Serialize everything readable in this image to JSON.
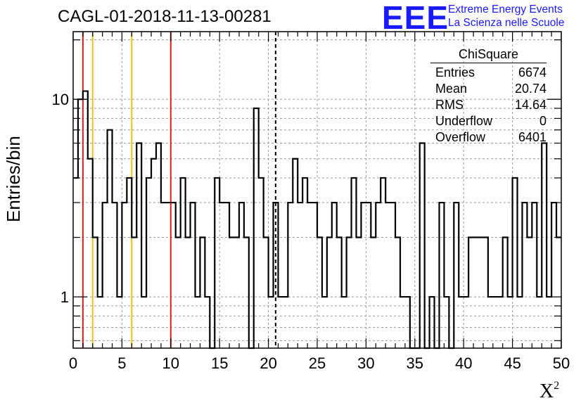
{
  "title": "CAGL-01-2018-11-13-00281",
  "logo": {
    "mark": "EEE",
    "line1": "Extreme Energy Events",
    "line2": "La Scienza nelle Scuole",
    "color": "#1a1aff"
  },
  "stats": {
    "name": "ChiSquare",
    "rows": [
      {
        "label": "Entries",
        "value": "6674"
      },
      {
        "label": "Mean",
        "value": "20.74"
      },
      {
        "label": "RMS",
        "value": "14.64"
      },
      {
        "label": "Underflow",
        "value": "0"
      },
      {
        "label": "Overflow",
        "value": "6401"
      }
    ]
  },
  "chart_data": {
    "type": "histogram",
    "title": "CAGL-01-2018-11-13-00281",
    "xlabel": "X²",
    "ylabel": "Entries/bin",
    "xlim": [
      0,
      50
    ],
    "ylim": [
      0.55,
      22
    ],
    "yscale": "log",
    "grid": true,
    "bin_width": 0.5,
    "xticks": [
      0,
      5,
      10,
      15,
      20,
      25,
      30,
      35,
      40,
      45,
      50
    ],
    "yticks": [
      1,
      10
    ],
    "values": [
      4,
      10,
      11,
      5,
      2,
      1,
      3,
      7,
      3,
      1,
      3,
      4,
      2,
      6,
      1,
      4,
      5,
      6,
      3,
      3,
      3,
      2,
      4,
      2,
      3,
      1,
      2,
      1,
      0,
      4,
      3,
      3,
      2,
      2,
      3,
      2,
      0,
      9,
      4,
      2,
      1,
      3,
      1,
      1,
      3,
      5,
      3,
      4,
      3,
      3,
      2,
      1,
      2,
      3,
      2,
      1,
      2,
      4,
      2,
      3,
      3,
      2,
      3,
      4,
      3,
      3,
      2,
      1,
      1,
      0,
      0,
      6,
      0,
      1,
      0,
      3,
      1,
      0,
      3,
      1,
      1,
      2,
      2,
      2,
      2,
      1,
      1,
      1,
      2,
      1,
      4,
      1,
      3,
      2,
      3,
      1,
      6,
      1,
      3,
      2
    ],
    "vertical_lines": [
      {
        "x": 1,
        "color": "#e0201a",
        "style": "solid"
      },
      {
        "x": 2,
        "color": "#f2c21a",
        "style": "solid"
      },
      {
        "x": 6,
        "color": "#f2c21a",
        "style": "solid"
      },
      {
        "x": 10,
        "color": "#e0201a",
        "style": "solid"
      },
      {
        "x": 20.74,
        "color": "#000000",
        "style": "dashed"
      }
    ]
  }
}
